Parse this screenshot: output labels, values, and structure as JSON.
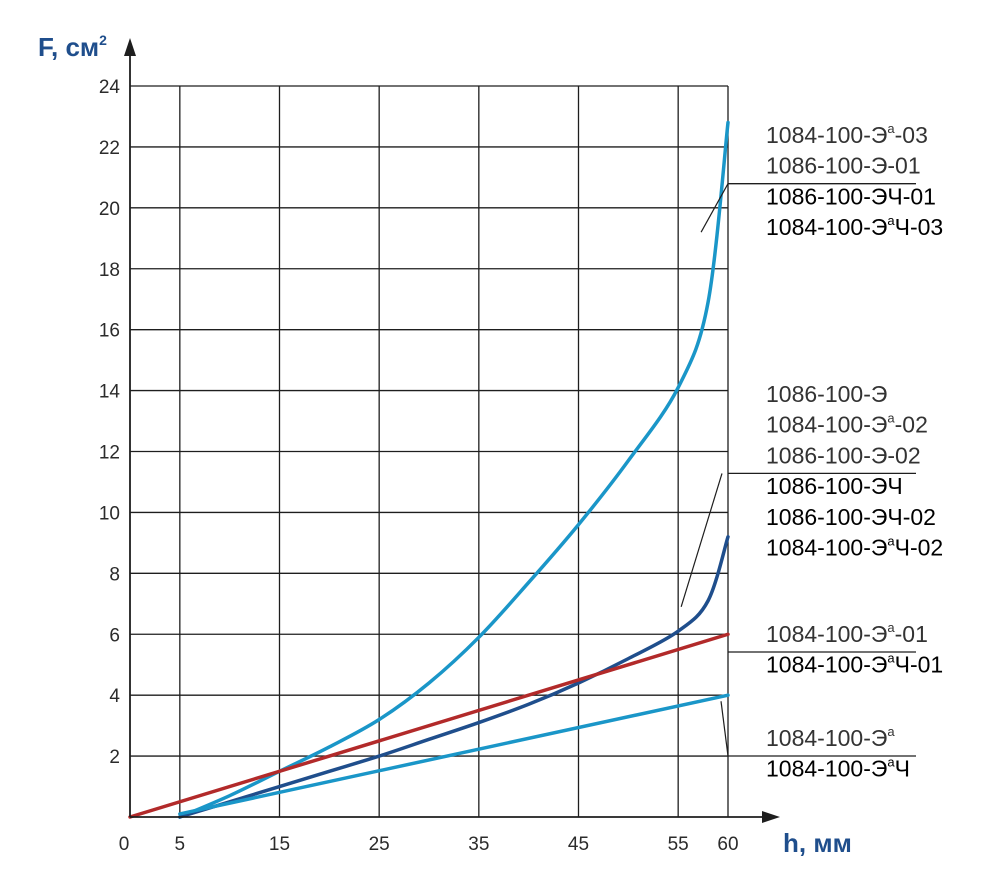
{
  "chart_data": {
    "type": "line",
    "xlabel": "h, мм",
    "ylabel": "F, см",
    "ylabel_sup": "2",
    "xlim": [
      0,
      60
    ],
    "ylim": [
      0,
      24
    ],
    "x_ticks": [
      0,
      5,
      15,
      25,
      35,
      45,
      55,
      60
    ],
    "x_grid": [
      5,
      15,
      25,
      35,
      45,
      55
    ],
    "y_ticks": [
      2,
      4,
      6,
      8,
      10,
      12,
      14,
      16,
      18,
      20,
      22,
      24
    ],
    "grid": true,
    "series": [
      {
        "color": "#1a96c8",
        "points": [
          [
            5,
            0
          ],
          [
            10,
            0.7
          ],
          [
            15,
            1.5
          ],
          [
            20,
            2.3
          ],
          [
            25,
            3.2
          ],
          [
            30,
            4.4
          ],
          [
            35,
            5.9
          ],
          [
            40,
            7.7
          ],
          [
            45,
            9.6
          ],
          [
            50,
            11.7
          ],
          [
            55,
            14.1
          ],
          [
            58,
            16.9
          ],
          [
            60,
            22.8
          ]
        ]
      },
      {
        "color": "#1f4e8c",
        "points": [
          [
            5,
            0
          ],
          [
            10,
            0.5
          ],
          [
            15,
            1.0
          ],
          [
            20,
            1.5
          ],
          [
            25,
            2.0
          ],
          [
            30,
            2.55
          ],
          [
            35,
            3.1
          ],
          [
            40,
            3.7
          ],
          [
            45,
            4.4
          ],
          [
            50,
            5.2
          ],
          [
            55,
            6.1
          ],
          [
            58,
            7.1
          ],
          [
            60,
            9.2
          ]
        ]
      },
      {
        "color": "#b22a2a",
        "points": [
          [
            0,
            0
          ],
          [
            60,
            6
          ]
        ]
      },
      {
        "color": "#1a96c8",
        "points": [
          [
            5,
            0.1
          ],
          [
            60,
            4
          ]
        ]
      }
    ],
    "legend_groups": [
      {
        "labels": [
          {
            "base": "1084-100-Э",
            "sup": "а",
            "tail": "-03",
            "color": "#333333"
          },
          {
            "base": "1086-100-Э-01",
            "sup": "",
            "tail": "",
            "color": "#333333"
          },
          {
            "base": "1086-100-ЭЧ-01",
            "sup": "",
            "tail": "",
            "color": "#000000"
          },
          {
            "base": "1084-100-Э",
            "sup": "а",
            "tail": "Ч-03",
            "color": "#000000"
          }
        ]
      },
      {
        "labels": [
          {
            "base": "1086-100-Э",
            "sup": "",
            "tail": "",
            "color": "#333333"
          },
          {
            "base": "1084-100-Э",
            "sup": "а",
            "tail": "-02",
            "color": "#333333"
          },
          {
            "base": "1086-100-Э-02",
            "sup": "",
            "tail": "",
            "color": "#333333"
          },
          {
            "base": "1086-100-ЭЧ",
            "sup": "",
            "tail": "",
            "color": "#000000"
          },
          {
            "base": "1086-100-ЭЧ-02",
            "sup": "",
            "tail": "",
            "color": "#000000"
          },
          {
            "base": "1084-100-Э",
            "sup": "а",
            "tail": "Ч-02",
            "color": "#000000"
          }
        ]
      },
      {
        "labels": [
          {
            "base": "1084-100-Э",
            "sup": "а",
            "tail": "-01",
            "color": "#333333"
          },
          {
            "base": "1084-100-Э",
            "sup": "а",
            "tail": "Ч-01",
            "color": "#000000"
          }
        ]
      },
      {
        "labels": [
          {
            "base": "1084-100-Э",
            "sup": "а",
            "tail": "",
            "color": "#333333"
          },
          {
            "base": "1084-100-Э",
            "sup": "а",
            "tail": "Ч",
            "color": "#000000"
          }
        ]
      }
    ]
  }
}
